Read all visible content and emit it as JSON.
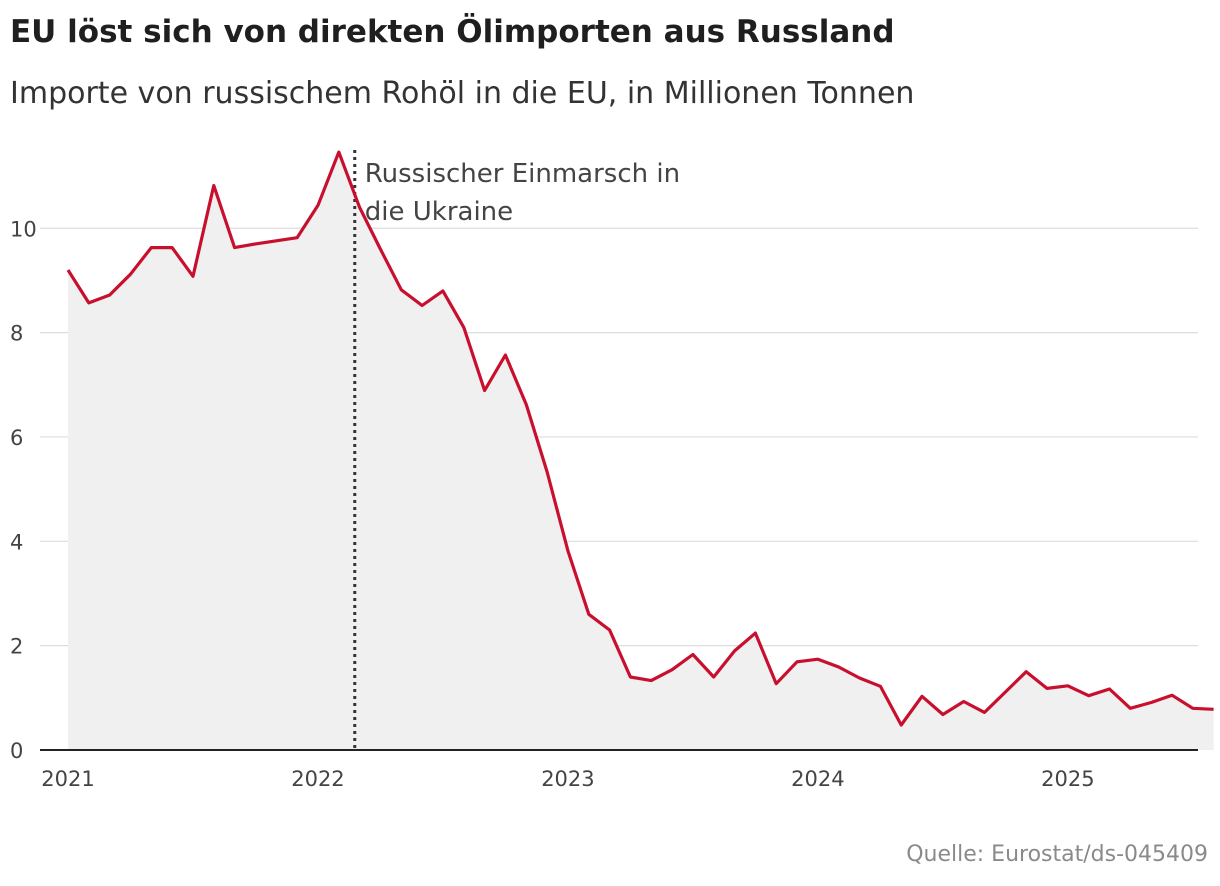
{
  "title": "EU löst sich von direkten Ölimporten aus Russland",
  "subtitle": "Importe von russischem Rohöl in die EU, in Millionen Tonnen",
  "source": "Quelle: Eurostat/ds-045409",
  "colors": {
    "line": "#c8102e",
    "area": "#f0f0f0",
    "grid": "#dddddd",
    "axis": "#222222",
    "marker": "#333333"
  },
  "chart_data": {
    "type": "area",
    "x_start": "2021-01",
    "x_ticks": [
      "2021",
      "2022",
      "2023",
      "2024",
      "2025"
    ],
    "y_ticks": [
      0,
      2,
      4,
      6,
      8,
      10
    ],
    "ylim": [
      0,
      11.5
    ],
    "grid": true,
    "values": [
      9.2,
      8.57,
      8.72,
      9.12,
      9.63,
      9.63,
      9.08,
      10.82,
      9.63,
      9.7,
      9.76,
      9.82,
      10.44,
      11.46,
      10.4,
      9.6,
      8.82,
      8.52,
      8.8,
      8.1,
      6.89,
      7.57,
      6.62,
      5.33,
      3.82,
      2.6,
      2.3,
      1.4,
      1.33,
      1.54,
      1.83,
      1.4,
      1.9,
      2.24,
      1.27,
      1.69,
      1.74,
      1.59,
      1.38,
      1.22,
      0.48,
      1.03,
      0.68,
      0.93,
      0.72,
      1.11,
      1.5,
      1.18,
      1.23,
      1.04,
      1.17,
      0.8,
      0.91,
      1.05,
      0.8,
      0.78
    ],
    "annotations": [
      {
        "date": "2022-02-24",
        "label_lines": [
          "Russischer Einmarsch in",
          "die Ukraine"
        ]
      }
    ]
  }
}
